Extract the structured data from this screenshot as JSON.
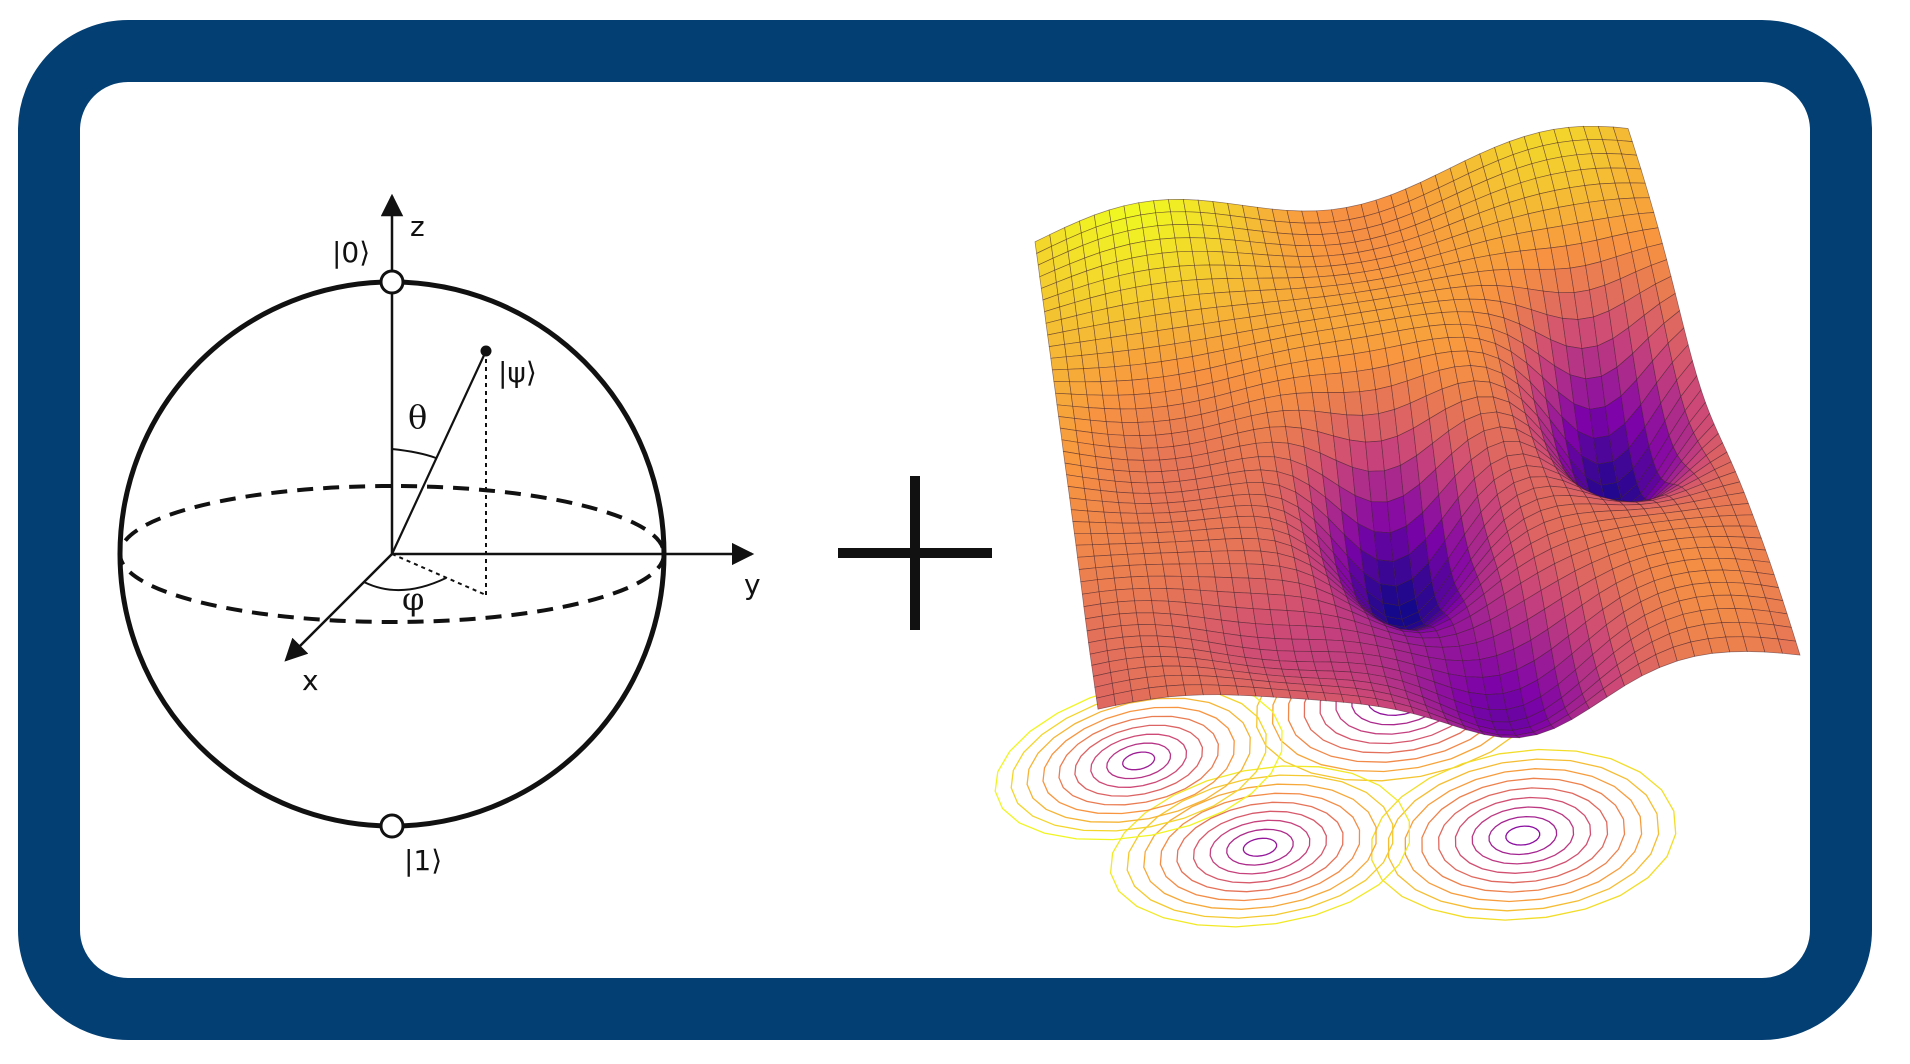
{
  "bloch_sphere": {
    "axes": {
      "x": "x",
      "y": "y",
      "z": "z"
    },
    "states": {
      "zero": "|0⟩",
      "one": "|1⟩",
      "psi": "|ψ⟩"
    },
    "angles": {
      "theta": "θ",
      "phi": "φ"
    }
  },
  "operator": "+",
  "energy_landscape": {
    "colormap": "plasma",
    "surface_color_high": "#F2F23A",
    "surface_color_mid": "#F08A3C",
    "surface_color_low": "#160B8A"
  },
  "frame": {
    "border_color": "#043F73"
  }
}
